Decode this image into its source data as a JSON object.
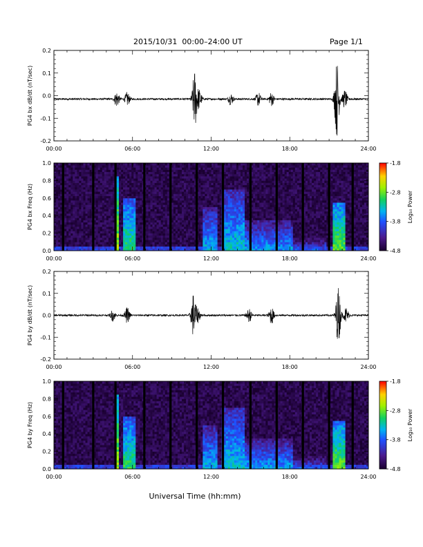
{
  "header": {
    "title": "2015/10/31  00:00–24:00 UT",
    "page": "Page 1/1"
  },
  "xlabel": "Universal Time (hh:mm)",
  "chart_data": [
    {
      "type": "line",
      "ylabel": "PG4 bx dB/dt (nT/sec)",
      "xlim": [
        0,
        24
      ],
      "ylim": [
        -0.2,
        0.2
      ],
      "x_ticks": [
        "00:00",
        "06:00",
        "12:00",
        "18:00",
        "24:00"
      ],
      "y_ticks": [
        "-0.2",
        "-0.1",
        "0.0",
        "0.1",
        "0.2"
      ],
      "baseline": -0.015,
      "bursts": [
        {
          "t": 4.8,
          "amp": 0.035
        },
        {
          "t": 5.6,
          "amp": 0.03
        },
        {
          "t": 10.75,
          "amp": 0.13
        },
        {
          "t": 11.1,
          "amp": 0.04
        },
        {
          "t": 13.5,
          "amp": 0.025
        },
        {
          "t": 15.6,
          "amp": 0.03
        },
        {
          "t": 16.6,
          "amp": 0.03
        },
        {
          "t": 21.6,
          "amp": 0.17
        },
        {
          "t": 22.2,
          "amp": 0.04
        }
      ]
    },
    {
      "type": "heatmap",
      "ylabel": "PG4 bx Freq (Hz)",
      "xlim": [
        0,
        24
      ],
      "ylim": [
        0,
        1.0
      ],
      "x_ticks": [
        "00:00",
        "06:00",
        "12:00",
        "18:00",
        "24:00"
      ],
      "y_ticks": [
        "0.0",
        "0.2",
        "0.4",
        "0.6",
        "0.8",
        "1.0"
      ],
      "colorbar": {
        "label": "Log₁₀ Power",
        "min": -4.8,
        "max": -1.8,
        "ticks": [
          "-1.8",
          "-2.8",
          "-3.8",
          "-4.8"
        ]
      },
      "data_gaps": [
        0.7,
        3.0,
        4.7,
        6.9,
        8.9,
        10.9,
        12.9,
        15.0,
        17.0,
        19.0,
        21.0,
        22.8
      ],
      "activity": [
        {
          "t0": 4.6,
          "t1": 5.0,
          "fmax": 0.85,
          "level": -2.6
        },
        {
          "t0": 5.3,
          "t1": 6.2,
          "fmax": 0.6,
          "level": -3.0
        },
        {
          "t0": 11.3,
          "t1": 12.5,
          "fmax": 0.5,
          "level": -3.4
        },
        {
          "t0": 12.8,
          "t1": 14.6,
          "fmax": 0.7,
          "level": -3.3
        },
        {
          "t0": 14.6,
          "t1": 18.2,
          "fmax": 0.35,
          "level": -3.5
        },
        {
          "t0": 18.3,
          "t1": 20.8,
          "fmax": 0.15,
          "level": -3.8
        },
        {
          "t0": 21.3,
          "t1": 22.2,
          "fmax": 0.55,
          "level": -2.8
        }
      ]
    },
    {
      "type": "line",
      "ylabel": "PG4 by dB/dt (nT/sec)",
      "xlim": [
        0,
        24
      ],
      "ylim": [
        -0.2,
        0.2
      ],
      "x_ticks": [
        "00:00",
        "06:00",
        "12:00",
        "18:00",
        "24:00"
      ],
      "y_ticks": [
        "-0.2",
        "-0.1",
        "0.0",
        "0.1",
        "0.2"
      ],
      "baseline": 0.0,
      "bursts": [
        {
          "t": 4.5,
          "amp": 0.025
        },
        {
          "t": 5.6,
          "amp": 0.035
        },
        {
          "t": 10.65,
          "amp": 0.1
        },
        {
          "t": 11.0,
          "amp": 0.03
        },
        {
          "t": 14.9,
          "amp": 0.03
        },
        {
          "t": 16.6,
          "amp": 0.04
        },
        {
          "t": 21.7,
          "amp": 0.13
        },
        {
          "t": 22.3,
          "amp": 0.035
        }
      ]
    },
    {
      "type": "heatmap",
      "ylabel": "PG4 by Freq (Hz)",
      "xlim": [
        0,
        24
      ],
      "ylim": [
        0,
        1.0
      ],
      "x_ticks": [
        "00:00",
        "06:00",
        "12:00",
        "18:00",
        "24:00"
      ],
      "y_ticks": [
        "0.0",
        "0.2",
        "0.4",
        "0.6",
        "0.8",
        "1.0"
      ],
      "colorbar": {
        "label": "Log₁₀ Power",
        "min": -4.8,
        "max": -1.8,
        "ticks": [
          "-1.8",
          "-2.8",
          "-3.8",
          "-4.8"
        ]
      },
      "data_gaps": [
        0.7,
        3.0,
        4.7,
        6.9,
        8.9,
        10.9,
        12.9,
        15.0,
        17.0,
        19.0,
        21.0,
        22.8
      ],
      "activity": [
        {
          "t0": 4.6,
          "t1": 5.0,
          "fmax": 0.85,
          "level": -2.6
        },
        {
          "t0": 5.3,
          "t1": 6.2,
          "fmax": 0.6,
          "level": -3.0
        },
        {
          "t0": 11.3,
          "t1": 12.5,
          "fmax": 0.5,
          "level": -3.4
        },
        {
          "t0": 12.8,
          "t1": 14.6,
          "fmax": 0.7,
          "level": -3.3
        },
        {
          "t0": 14.6,
          "t1": 18.2,
          "fmax": 0.35,
          "level": -3.5
        },
        {
          "t0": 18.3,
          "t1": 20.8,
          "fmax": 0.15,
          "level": -3.8
        },
        {
          "t0": 21.3,
          "t1": 22.2,
          "fmax": 0.55,
          "level": -2.8
        }
      ]
    }
  ]
}
